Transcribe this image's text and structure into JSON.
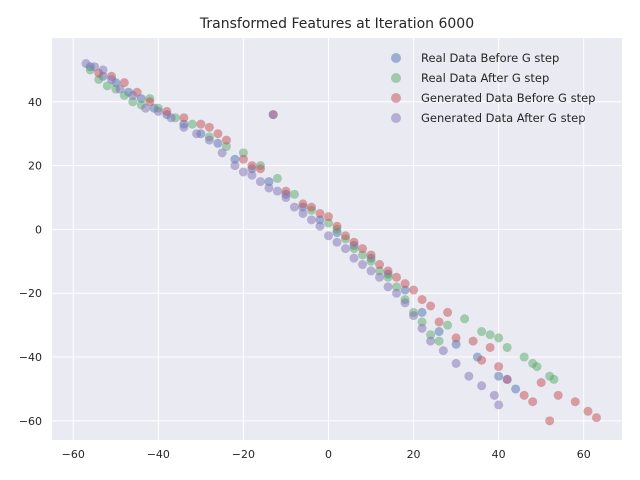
{
  "chart_data": {
    "type": "scatter",
    "title": "Transformed Features at Iteration 6000",
    "xlabel": "",
    "ylabel": "",
    "xlim": [
      -65,
      69
    ],
    "ylim": [
      -66,
      60
    ],
    "xticks": [
      -60,
      -40,
      -20,
      0,
      20,
      40,
      60
    ],
    "yticks": [
      -60,
      -40,
      -20,
      0,
      20,
      40
    ],
    "grid": true,
    "legend_position": "top-right",
    "series": [
      {
        "name": "Real Data Before G step",
        "color": "#4c72b0",
        "points": [
          [
            -56,
            51
          ],
          [
            -53,
            48
          ],
          [
            -50,
            46
          ],
          [
            -47,
            43
          ],
          [
            -44,
            41
          ],
          [
            -41,
            38
          ],
          [
            -38,
            36
          ],
          [
            -34,
            33
          ],
          [
            -30,
            30
          ],
          [
            -26,
            27
          ],
          [
            -22,
            22
          ],
          [
            -18,
            19
          ],
          [
            -14,
            15
          ],
          [
            -10,
            11
          ],
          [
            -6,
            7
          ],
          [
            -2,
            3
          ],
          [
            2,
            -1
          ],
          [
            6,
            -5
          ],
          [
            10,
            -9
          ],
          [
            14,
            -14
          ],
          [
            18,
            -19
          ],
          [
            22,
            -26
          ],
          [
            26,
            -32
          ],
          [
            30,
            -36
          ],
          [
            35,
            -40
          ],
          [
            40,
            -46
          ],
          [
            44,
            -50
          ]
        ]
      },
      {
        "name": "Real Data After G step",
        "color": "#55a868",
        "points": [
          [
            -56,
            50
          ],
          [
            -54,
            47
          ],
          [
            -52,
            45
          ],
          [
            -50,
            44
          ],
          [
            -48,
            42
          ],
          [
            -46,
            40
          ],
          [
            -44,
            39
          ],
          [
            -42,
            41
          ],
          [
            -40,
            38
          ],
          [
            -36,
            35
          ],
          [
            -32,
            33
          ],
          [
            -28,
            29
          ],
          [
            -24,
            26
          ],
          [
            -20,
            24
          ],
          [
            -16,
            20
          ],
          [
            -12,
            16
          ],
          [
            -8,
            11
          ],
          [
            -4,
            6
          ],
          [
            0,
            2
          ],
          [
            2,
            0
          ],
          [
            4,
            -3
          ],
          [
            6,
            -6
          ],
          [
            8,
            -8
          ],
          [
            10,
            -10
          ],
          [
            12,
            -13
          ],
          [
            14,
            -15
          ],
          [
            16,
            -18
          ],
          [
            18,
            -22
          ],
          [
            20,
            -26
          ],
          [
            22,
            -29
          ],
          [
            24,
            -33
          ],
          [
            26,
            -35
          ],
          [
            28,
            -30
          ],
          [
            32,
            -28
          ],
          [
            36,
            -32
          ],
          [
            38,
            -33
          ],
          [
            40,
            -34
          ],
          [
            42,
            -37
          ],
          [
            46,
            -40
          ],
          [
            48,
            -42
          ],
          [
            49,
            -43
          ],
          [
            52,
            -46
          ],
          [
            53,
            -47
          ]
        ]
      },
      {
        "name": "Generated Data Before G step",
        "color": "#c44e52",
        "points": [
          [
            -54,
            49
          ],
          [
            -51,
            48
          ],
          [
            -48,
            46
          ],
          [
            -45,
            43
          ],
          [
            -42,
            40
          ],
          [
            -38,
            37
          ],
          [
            -34,
            35
          ],
          [
            -30,
            33
          ],
          [
            -28,
            32
          ],
          [
            -26,
            30
          ],
          [
            -24,
            28
          ],
          [
            -20,
            22
          ],
          [
            -18,
            20
          ],
          [
            -16,
            19
          ],
          [
            -13,
            36
          ],
          [
            -10,
            12
          ],
          [
            -6,
            8
          ],
          [
            -4,
            7
          ],
          [
            -2,
            5
          ],
          [
            0,
            4
          ],
          [
            2,
            1
          ],
          [
            4,
            -2
          ],
          [
            6,
            -4
          ],
          [
            8,
            -6
          ],
          [
            10,
            -8
          ],
          [
            12,
            -11
          ],
          [
            14,
            -13
          ],
          [
            16,
            -15
          ],
          [
            18,
            -17
          ],
          [
            20,
            -19
          ],
          [
            22,
            -22
          ],
          [
            24,
            -24
          ],
          [
            26,
            -29
          ],
          [
            28,
            -26
          ],
          [
            30,
            -34
          ],
          [
            34,
            -35
          ],
          [
            36,
            -41
          ],
          [
            38,
            -37
          ],
          [
            40,
            -43
          ],
          [
            42,
            -47
          ],
          [
            46,
            -52
          ],
          [
            48,
            -54
          ],
          [
            50,
            -48
          ],
          [
            52,
            -60
          ],
          [
            54,
            -52
          ],
          [
            58,
            -54
          ],
          [
            61,
            -57
          ],
          [
            63,
            -59
          ]
        ]
      },
      {
        "name": "Generated Data After G step",
        "color": "#8172b2",
        "points": [
          [
            -57,
            52
          ],
          [
            -55,
            51
          ],
          [
            -53,
            50
          ],
          [
            -51,
            47
          ],
          [
            -49,
            44
          ],
          [
            -46,
            42
          ],
          [
            -43,
            38
          ],
          [
            -40,
            37
          ],
          [
            -37,
            35
          ],
          [
            -34,
            32
          ],
          [
            -31,
            30
          ],
          [
            -28,
            28
          ],
          [
            -25,
            24
          ],
          [
            -22,
            20
          ],
          [
            -20,
            18
          ],
          [
            -18,
            17
          ],
          [
            -16,
            15
          ],
          [
            -14,
            13
          ],
          [
            -12,
            12
          ],
          [
            -10,
            10
          ],
          [
            -8,
            7
          ],
          [
            -6,
            5
          ],
          [
            -4,
            3
          ],
          [
            -2,
            1
          ],
          [
            0,
            -2
          ],
          [
            2,
            -4
          ],
          [
            4,
            -6
          ],
          [
            6,
            -9
          ],
          [
            8,
            -11
          ],
          [
            10,
            -13
          ],
          [
            12,
            -15
          ],
          [
            14,
            -18
          ],
          [
            16,
            -20
          ],
          [
            18,
            -23
          ],
          [
            20,
            -27
          ],
          [
            22,
            -31
          ],
          [
            24,
            -35
          ],
          [
            27,
            -38
          ],
          [
            30,
            -42
          ],
          [
            33,
            -46
          ],
          [
            36,
            -49
          ],
          [
            39,
            -52
          ],
          [
            40,
            -55
          ],
          [
            42,
            -47
          ],
          [
            -13,
            36
          ]
        ]
      }
    ]
  }
}
